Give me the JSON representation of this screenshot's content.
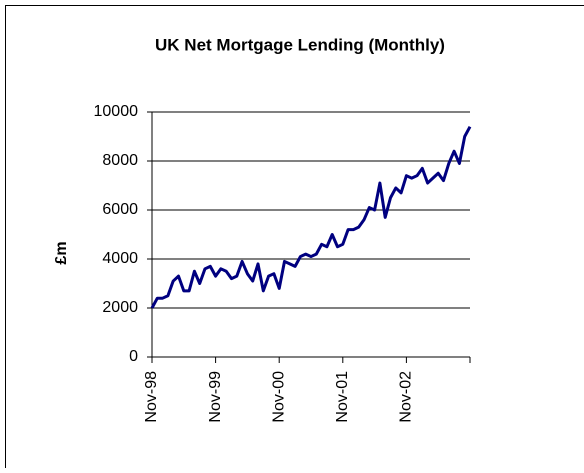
{
  "chart_data": {
    "type": "line",
    "title": "UK Net Mortgage Lending (Monthly)",
    "y_label": "£m",
    "categories": [
      "Nov-98",
      null,
      null,
      null,
      null,
      null,
      null,
      null,
      null,
      null,
      null,
      null,
      "Nov-99",
      null,
      null,
      null,
      null,
      null,
      null,
      null,
      null,
      null,
      null,
      null,
      "Nov-00",
      null,
      null,
      null,
      null,
      null,
      null,
      null,
      null,
      null,
      null,
      null,
      "Nov-01",
      null,
      null,
      null,
      null,
      null,
      null,
      null,
      null,
      null,
      null,
      null,
      "Nov-02",
      null,
      null,
      null,
      null,
      null,
      null,
      null,
      null,
      null,
      null,
      null,
      null
    ],
    "values": [
      2000,
      2400,
      2400,
      2500,
      3100,
      3300,
      2700,
      2700,
      3500,
      3000,
      3600,
      3700,
      3300,
      3600,
      3500,
      3200,
      3300,
      3900,
      3400,
      3100,
      3800,
      2700,
      3300,
      3400,
      2800,
      3900,
      3800,
      3700,
      4100,
      4200,
      4100,
      4200,
      4600,
      4500,
      5000,
      4500,
      4600,
      5200,
      5200,
      5300,
      5600,
      6100,
      6000,
      7100,
      5700,
      6500,
      6900,
      6700,
      7400,
      7300,
      7400,
      7700,
      7100,
      7300,
      7500,
      7200,
      7900,
      8400,
      7900,
      9000,
      9400
    ],
    "color": "#000080",
    "ylim": [
      0,
      10000
    ],
    "yticks": [
      0,
      2000,
      4000,
      6000,
      8000,
      10000
    ],
    "grid": true
  }
}
